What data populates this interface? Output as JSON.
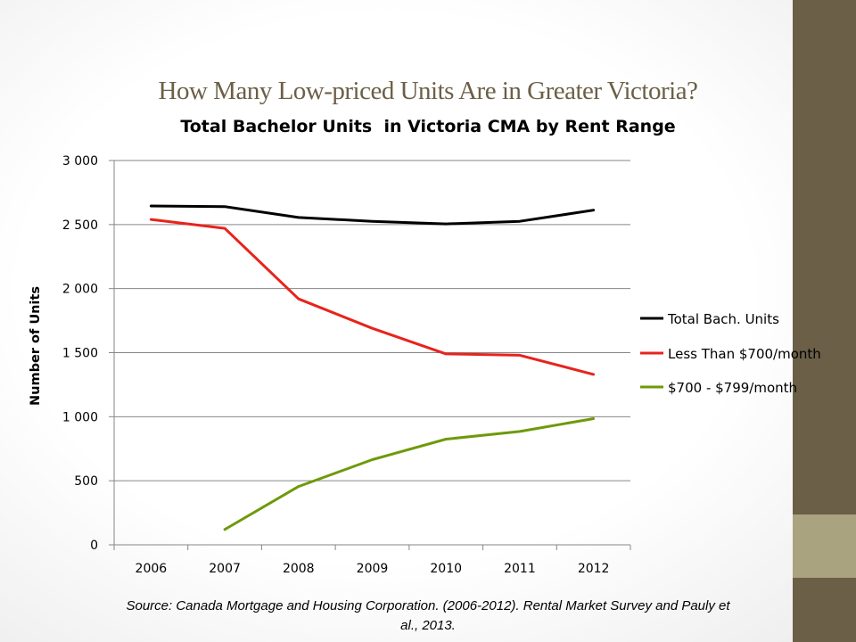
{
  "slide": {
    "title": "How Many Low-priced Units Are in Greater Victoria?",
    "source": "Source: Canada Mortgage and Housing Corporation. (2006-2012). Rental Market Survey and Pauly et al., 2013."
  },
  "colors": {
    "side_bar_dark": "#6b5f47",
    "side_bar_light": "#aaa37f",
    "title": "#6b5f47"
  },
  "chart_data": {
    "type": "line",
    "title": "Total Bachelor Units  in Victoria CMA by Rent Range",
    "xlabel": "",
    "ylabel": "Number of Units",
    "categories": [
      "2006",
      "2007",
      "2008",
      "2009",
      "2010",
      "2011",
      "2012"
    ],
    "ylim": [
      0,
      3000
    ],
    "yticks": [
      0,
      500,
      1000,
      1500,
      2000,
      2500,
      3000
    ],
    "ytick_labels": [
      "0",
      "500",
      "1 000",
      "1 500",
      "2 000",
      "2 500",
      "3 000"
    ],
    "grid": true,
    "legend_position": "right",
    "series": [
      {
        "name": "Total Bach. Units",
        "color": "#000000",
        "values": [
          2645,
          2640,
          2555,
          2525,
          2505,
          2525,
          2612
        ]
      },
      {
        "name": "Less Than $700/month",
        "color": "#e8231c",
        "values": [
          2540,
          2470,
          1920,
          1690,
          1490,
          1480,
          1330
        ]
      },
      {
        "name": "$700 - $799/month",
        "color": "#6e9a0a",
        "values": [
          null,
          120,
          455,
          665,
          825,
          885,
          985
        ]
      }
    ]
  }
}
